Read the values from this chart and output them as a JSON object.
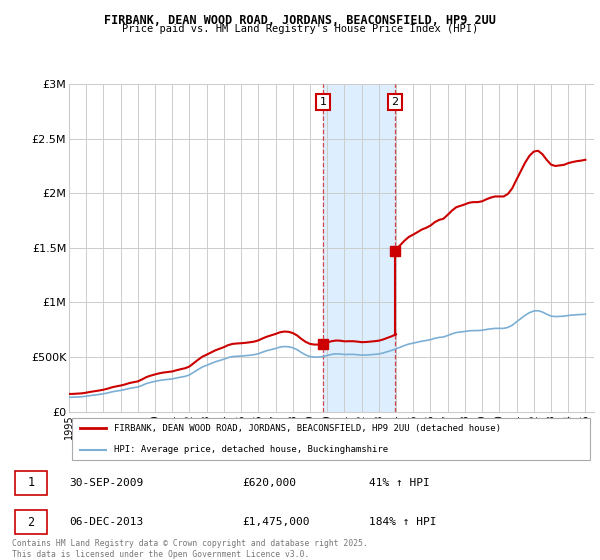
{
  "title": "FIRBANK, DEAN WOOD ROAD, JORDANS, BEACONSFIELD, HP9 2UU",
  "subtitle": "Price paid vs. HM Land Registry's House Price Index (HPI)",
  "ylim": [
    0,
    3000000
  ],
  "yticks": [
    0,
    500000,
    1000000,
    1500000,
    2000000,
    2500000,
    3000000
  ],
  "ytick_labels": [
    "£0",
    "£500K",
    "£1M",
    "£1.5M",
    "£2M",
    "£2.5M",
    "£3M"
  ],
  "background_color": "#ffffff",
  "grid_color": "#cccccc",
  "line1_color": "#cc0000",
  "line2_color": "#7bafd4",
  "shaded_region": [
    2009.75,
    2013.92
  ],
  "shaded_color": "#ddeeff",
  "marker1_x": 2009.75,
  "marker1_y": 620000,
  "marker2_x": 2013.92,
  "marker2_y": 1475000,
  "legend_label1": "FIRBANK, DEAN WOOD ROAD, JORDANS, BEACONSFIELD, HP9 2UU (detached house)",
  "legend_label2": "HPI: Average price, detached house, Buckinghamshire",
  "table_label1": "1",
  "table_date1": "30-SEP-2009",
  "table_price1": "£620,000",
  "table_hpi1": "41% ↑ HPI",
  "table_label2": "2",
  "table_date2": "06-DEC-2013",
  "table_price2": "£1,475,000",
  "table_hpi2": "184% ↑ HPI",
  "footer": "Contains HM Land Registry data © Crown copyright and database right 2025.\nThis data is licensed under the Open Government Licence v3.0.",
  "hpi_data_x": [
    1995.0,
    1995.25,
    1995.5,
    1995.75,
    1996.0,
    1996.25,
    1996.5,
    1996.75,
    1997.0,
    1997.25,
    1997.5,
    1997.75,
    1998.0,
    1998.25,
    1998.5,
    1998.75,
    1999.0,
    1999.25,
    1999.5,
    1999.75,
    2000.0,
    2000.25,
    2000.5,
    2000.75,
    2001.0,
    2001.25,
    2001.5,
    2001.75,
    2002.0,
    2002.25,
    2002.5,
    2002.75,
    2003.0,
    2003.25,
    2003.5,
    2003.75,
    2004.0,
    2004.25,
    2004.5,
    2004.75,
    2005.0,
    2005.25,
    2005.5,
    2005.75,
    2006.0,
    2006.25,
    2006.5,
    2006.75,
    2007.0,
    2007.25,
    2007.5,
    2007.75,
    2008.0,
    2008.25,
    2008.5,
    2008.75,
    2009.0,
    2009.25,
    2009.5,
    2009.75,
    2010.0,
    2010.25,
    2010.5,
    2010.75,
    2011.0,
    2011.25,
    2011.5,
    2011.75,
    2012.0,
    2012.25,
    2012.5,
    2012.75,
    2013.0,
    2013.25,
    2013.5,
    2013.75,
    2014.0,
    2014.25,
    2014.5,
    2014.75,
    2015.0,
    2015.25,
    2015.5,
    2015.75,
    2016.0,
    2016.25,
    2016.5,
    2016.75,
    2017.0,
    2017.25,
    2017.5,
    2017.75,
    2018.0,
    2018.25,
    2018.5,
    2018.75,
    2019.0,
    2019.25,
    2019.5,
    2019.75,
    2020.0,
    2020.25,
    2020.5,
    2020.75,
    2021.0,
    2021.25,
    2021.5,
    2021.75,
    2022.0,
    2022.25,
    2022.5,
    2022.75,
    2023.0,
    2023.25,
    2023.5,
    2023.75,
    2024.0,
    2024.25,
    2024.5,
    2024.75,
    2025.0
  ],
  "hpi_data_y": [
    131000,
    132000,
    134000,
    136000,
    141000,
    147000,
    152000,
    157000,
    163000,
    171000,
    181000,
    188000,
    194000,
    202000,
    212000,
    219000,
    225000,
    240000,
    257000,
    268000,
    277000,
    285000,
    291000,
    295000,
    299000,
    308000,
    316000,
    323000,
    336000,
    361000,
    386000,
    409000,
    424000,
    440000,
    456000,
    468000,
    480000,
    495000,
    504000,
    507000,
    509000,
    512000,
    516000,
    521000,
    530000,
    545000,
    558000,
    568000,
    578000,
    590000,
    596000,
    594000,
    585000,
    567000,
    541000,
    519000,
    504000,
    499000,
    499000,
    504000,
    514000,
    524000,
    529000,
    528000,
    523000,
    524000,
    524000,
    521000,
    517000,
    518000,
    521000,
    524000,
    528000,
    537000,
    549000,
    561000,
    575000,
    590000,
    606000,
    619000,
    627000,
    636000,
    645000,
    651000,
    659000,
    671000,
    679000,
    683000,
    697000,
    712000,
    724000,
    729000,
    734000,
    740000,
    742000,
    742000,
    745000,
    752000,
    758000,
    762000,
    762000,
    762000,
    771000,
    791000,
    822000,
    852000,
    882000,
    906000,
    921000,
    924000,
    912000,
    892000,
    875000,
    870000,
    872000,
    874000,
    880000,
    884000,
    887000,
    889000,
    892000
  ],
  "xlim": [
    1995.0,
    2025.5
  ],
  "purchase1_x": 2009.75,
  "purchase1_price": 620000,
  "purchase2_x": 2013.92,
  "purchase2_price": 1475000
}
